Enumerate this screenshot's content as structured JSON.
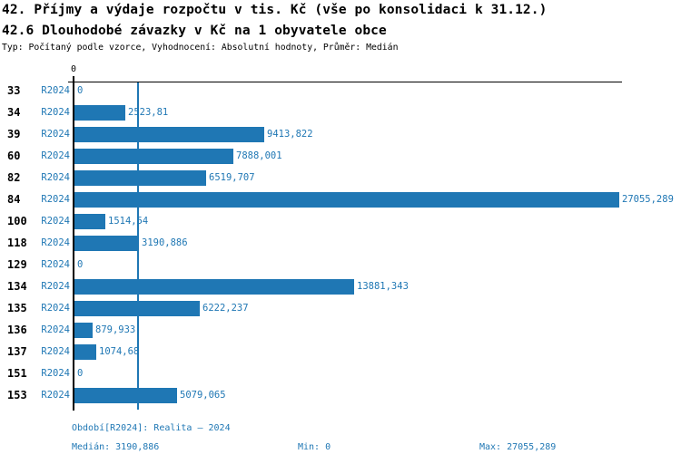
{
  "header": {
    "title": "42. Příjmy a výdaje rozpočtu v tis. Kč (vše po konsolidaci k 31.12.)",
    "subtitle": "42.6 Dlouhodobé závazky v Kč na 1 obyvatele obce",
    "meta": "Typ: Počítaný podle vzorce, Vyhodnocení: Absolutní hodnoty, Průměr: Medián"
  },
  "chart_data": {
    "type": "bar",
    "orientation": "horizontal",
    "title": "42.6 Dlouhodobé závazky v Kč na 1 obyvatele obce",
    "categories": [
      "33",
      "34",
      "39",
      "60",
      "82",
      "84",
      "100",
      "118",
      "129",
      "134",
      "135",
      "136",
      "137",
      "151",
      "153"
    ],
    "series": [
      {
        "name": "R2024",
        "values": [
          0,
          2523.81,
          9413.822,
          7888.001,
          6519.707,
          27055.289,
          1514.54,
          3190.886,
          0,
          13881.343,
          6222.237,
          879.933,
          1074.68,
          0,
          5079.065
        ]
      }
    ],
    "value_labels": [
      "0",
      "2523,81",
      "9413,822",
      "7888,001",
      "6519,707",
      "27055,289",
      "1514,54",
      "3190,886",
      "0",
      "13881,343",
      "6222,237",
      "879,933",
      "1074,68",
      "0",
      "5079,065"
    ],
    "xlim": [
      0,
      27055.289
    ],
    "x_tick_labels": [
      "0"
    ],
    "median": 3190.886,
    "min": 0,
    "max": 27055.289,
    "grid": false,
    "legend_position": "none",
    "bar_color": "#1f77b4"
  },
  "colors": {
    "bar": "#1f77b4",
    "blue_text": "#1f77b4",
    "axis": "#000000",
    "background": "#ffffff"
  },
  "footer": {
    "period": "Období[R2024]: Realita – 2024",
    "median": "Medián: 3190,886",
    "min": "Min: 0",
    "max": "Max: 27055,289"
  }
}
